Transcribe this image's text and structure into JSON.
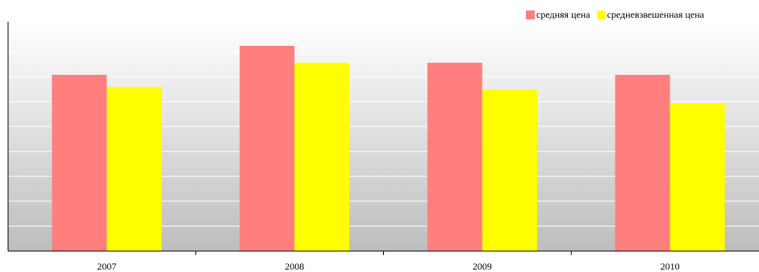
{
  "chart_data": {
    "type": "bar",
    "categories": [
      "2007",
      "2008",
      "2009",
      "2010"
    ],
    "series": [
      {
        "name": "средняя цена",
        "color": "#ff7f7f",
        "values": [
          73,
          85,
          78,
          73
        ]
      },
      {
        "name": "средневзвешенная цена",
        "color": "#ffff00",
        "values": [
          68,
          78,
          67,
          61
        ]
      }
    ],
    "ylim": [
      0,
      95
    ],
    "y_gridlines": 9,
    "y_axis_labels": false,
    "legend_position": "top-right",
    "background": "vertical gradient white to gray"
  }
}
